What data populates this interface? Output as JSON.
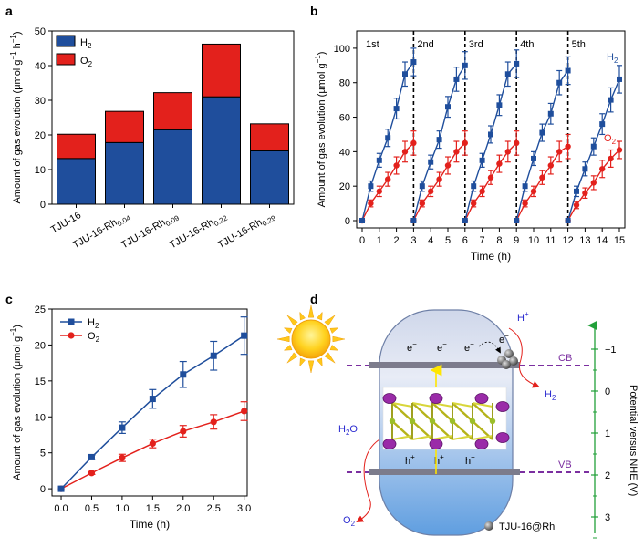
{
  "colors": {
    "h2": "#1f4e9c",
    "o2": "#e3211c",
    "h2_bar": "#1f4e9c",
    "o2_bar": "#e3211c"
  },
  "chart_data": [
    {
      "panel": "a",
      "type": "bar",
      "stacked": true,
      "categories": [
        "TJU-16",
        "TJU-16-Rh0.04",
        "TJU-16-Rh0.09",
        "TJU-16-Rh0.22",
        "TJU-16-Rh0.29"
      ],
      "category_labels": [
        {
          "base": "TJU-16",
          "sub": ""
        },
        {
          "base": "TJU-16-Rh",
          "sub": "0.04"
        },
        {
          "base": "TJU-16-Rh",
          "sub": "0.09"
        },
        {
          "base": "TJU-16-Rh",
          "sub": "0.22"
        },
        {
          "base": "TJU-16-Rh",
          "sub": "0.29"
        }
      ],
      "series": [
        {
          "name": "H2",
          "name_base": "H",
          "name_sub": "2",
          "values": [
            13.2,
            17.8,
            21.5,
            31.0,
            15.4
          ]
        },
        {
          "name": "O2",
          "name_base": "O",
          "name_sub": "2",
          "values": [
            7.0,
            9.0,
            10.7,
            15.2,
            7.8
          ]
        }
      ],
      "ylabel": "Amount of gas evolution (μmol g−1 h−1)",
      "ylabel_base": "Amount of gas evolution (μmol g",
      "ylabel_sup": "−1",
      "ylabel_mid": " h",
      "ylabel_sup2": "−1",
      "ylabel_end": ")",
      "ylim": [
        0,
        50
      ],
      "yticks": [
        0,
        10,
        20,
        30,
        40,
        50
      ],
      "legend": "top-left"
    },
    {
      "panel": "b",
      "type": "line",
      "xlabel": "Time (h)",
      "ylabel": "Amount of gas evolution (μmol g−1)",
      "ylabel_base": "Amount of gas evolution (μmol g",
      "ylabel_sup": "−1",
      "ylabel_end": ")",
      "xlim": [
        0,
        15
      ],
      "ylim": [
        0,
        110
      ],
      "xticks": [
        0,
        1,
        2,
        3,
        4,
        5,
        6,
        7,
        8,
        9,
        10,
        11,
        12,
        13,
        14,
        15
      ],
      "yticks": [
        0,
        20,
        40,
        60,
        80,
        100
      ],
      "cycle_labels": [
        "1st",
        "2nd",
        "3rd",
        "4th",
        "5th"
      ],
      "cycle_boundaries": [
        3,
        6,
        9,
        12
      ],
      "series_labels": [
        {
          "name": "H2",
          "base": "H",
          "sub": "2"
        },
        {
          "name": "O2",
          "base": "O",
          "sub": "2"
        }
      ],
      "cycles": [
        {
          "x": [
            0,
            0.5,
            1,
            1.5,
            2,
            2.5,
            3
          ],
          "h2": [
            0,
            20,
            35,
            48,
            65,
            85,
            92
          ],
          "h2_err": [
            0,
            3,
            4,
            5,
            6,
            7,
            8
          ],
          "o2": [
            0,
            10,
            17,
            24,
            32,
            40,
            45
          ],
          "o2_err": [
            0,
            2,
            3,
            4,
            5,
            6,
            7
          ]
        },
        {
          "x": [
            3,
            3.5,
            4,
            4.5,
            5,
            5.5,
            6
          ],
          "h2": [
            0,
            20,
            34,
            47,
            66,
            82,
            90
          ],
          "h2_err": [
            0,
            3,
            4,
            5,
            6,
            7,
            8
          ],
          "o2": [
            0,
            10,
            17,
            24,
            32,
            40,
            45
          ],
          "o2_err": [
            0,
            2,
            3,
            4,
            5,
            6,
            7
          ]
        },
        {
          "x": [
            6,
            6.5,
            7,
            7.5,
            8,
            8.5,
            9
          ],
          "h2": [
            0,
            20,
            35,
            50,
            67,
            85,
            91
          ],
          "h2_err": [
            0,
            3,
            4,
            5,
            6,
            7,
            8
          ],
          "o2": [
            0,
            10,
            17,
            25,
            33,
            40,
            45
          ],
          "o2_err": [
            0,
            2,
            3,
            4,
            5,
            6,
            7
          ]
        },
        {
          "x": [
            9,
            9.5,
            10,
            10.5,
            11,
            11.5,
            12
          ],
          "h2": [
            0,
            20,
            36,
            51,
            62,
            80,
            87
          ],
          "h2_err": [
            0,
            3,
            4,
            5,
            6,
            7,
            8
          ],
          "o2": [
            0,
            10,
            17,
            25,
            32,
            40,
            43
          ],
          "o2_err": [
            0,
            2,
            3,
            4,
            5,
            6,
            7
          ]
        },
        {
          "x": [
            12,
            12.5,
            13,
            13.5,
            14,
            14.5,
            15
          ],
          "h2": [
            0,
            17,
            30,
            43,
            56,
            70,
            82
          ],
          "h2_err": [
            0,
            3,
            4,
            5,
            6,
            7,
            8
          ],
          "o2": [
            0,
            9,
            16,
            22,
            30,
            36,
            41
          ],
          "o2_err": [
            0,
            2,
            3,
            4,
            5,
            5,
            5
          ]
        }
      ]
    },
    {
      "panel": "c",
      "type": "line",
      "x": [
        0.0,
        0.5,
        1.0,
        1.5,
        2.0,
        2.5,
        3.0
      ],
      "xticks": [
        "0.0",
        "0.5",
        "1.0",
        "1.5",
        "2.0",
        "2.5",
        "3.0"
      ],
      "series": [
        {
          "name": "H2",
          "name_base": "H",
          "name_sub": "2",
          "values": [
            0,
            4.4,
            8.5,
            12.5,
            15.9,
            18.5,
            21.3
          ],
          "errors": [
            0,
            0.3,
            0.8,
            1.3,
            1.8,
            2.0,
            2.6
          ]
        },
        {
          "name": "O2",
          "name_base": "O",
          "name_sub": "2",
          "values": [
            0,
            2.2,
            4.3,
            6.3,
            8.0,
            9.3,
            10.8
          ],
          "errors": [
            0,
            0.2,
            0.5,
            0.6,
            0.8,
            1.0,
            1.3
          ]
        }
      ],
      "xlabel": "Time (h)",
      "ylabel": "Amount of gas evolution (μmol g−1)",
      "ylabel_base": "Amount of gas evolution (μmol g",
      "ylabel_sup": "−1",
      "ylabel_end": ")",
      "xlim": [
        -0.15,
        3.05
      ],
      "ylim": [
        -1,
        25
      ],
      "yticks": [
        0,
        5,
        10,
        15,
        20,
        25
      ],
      "legend": "top-left"
    }
  ],
  "panels": {
    "a": "a",
    "b": "b",
    "c": "c",
    "d": "d"
  },
  "diagram": {
    "axis_label": "Potential versus NHE (V)",
    "axis_ticks": [
      "−1",
      "0",
      "1",
      "2",
      "3"
    ],
    "cb_label": "CB",
    "vb_label": "VB",
    "electron": "e",
    "electron_sup": "−",
    "hole": "h",
    "hole_sup": "+",
    "h_plus": "H",
    "h_plus_sup": "+",
    "h2_base": "H",
    "h2_sub": "2",
    "h2o_base": "H",
    "h2o_sub": "2",
    "h2o_end": "O",
    "o2_base": "O",
    "o2_sub": "2",
    "catalyst_label": "TJU-16@Rh"
  }
}
